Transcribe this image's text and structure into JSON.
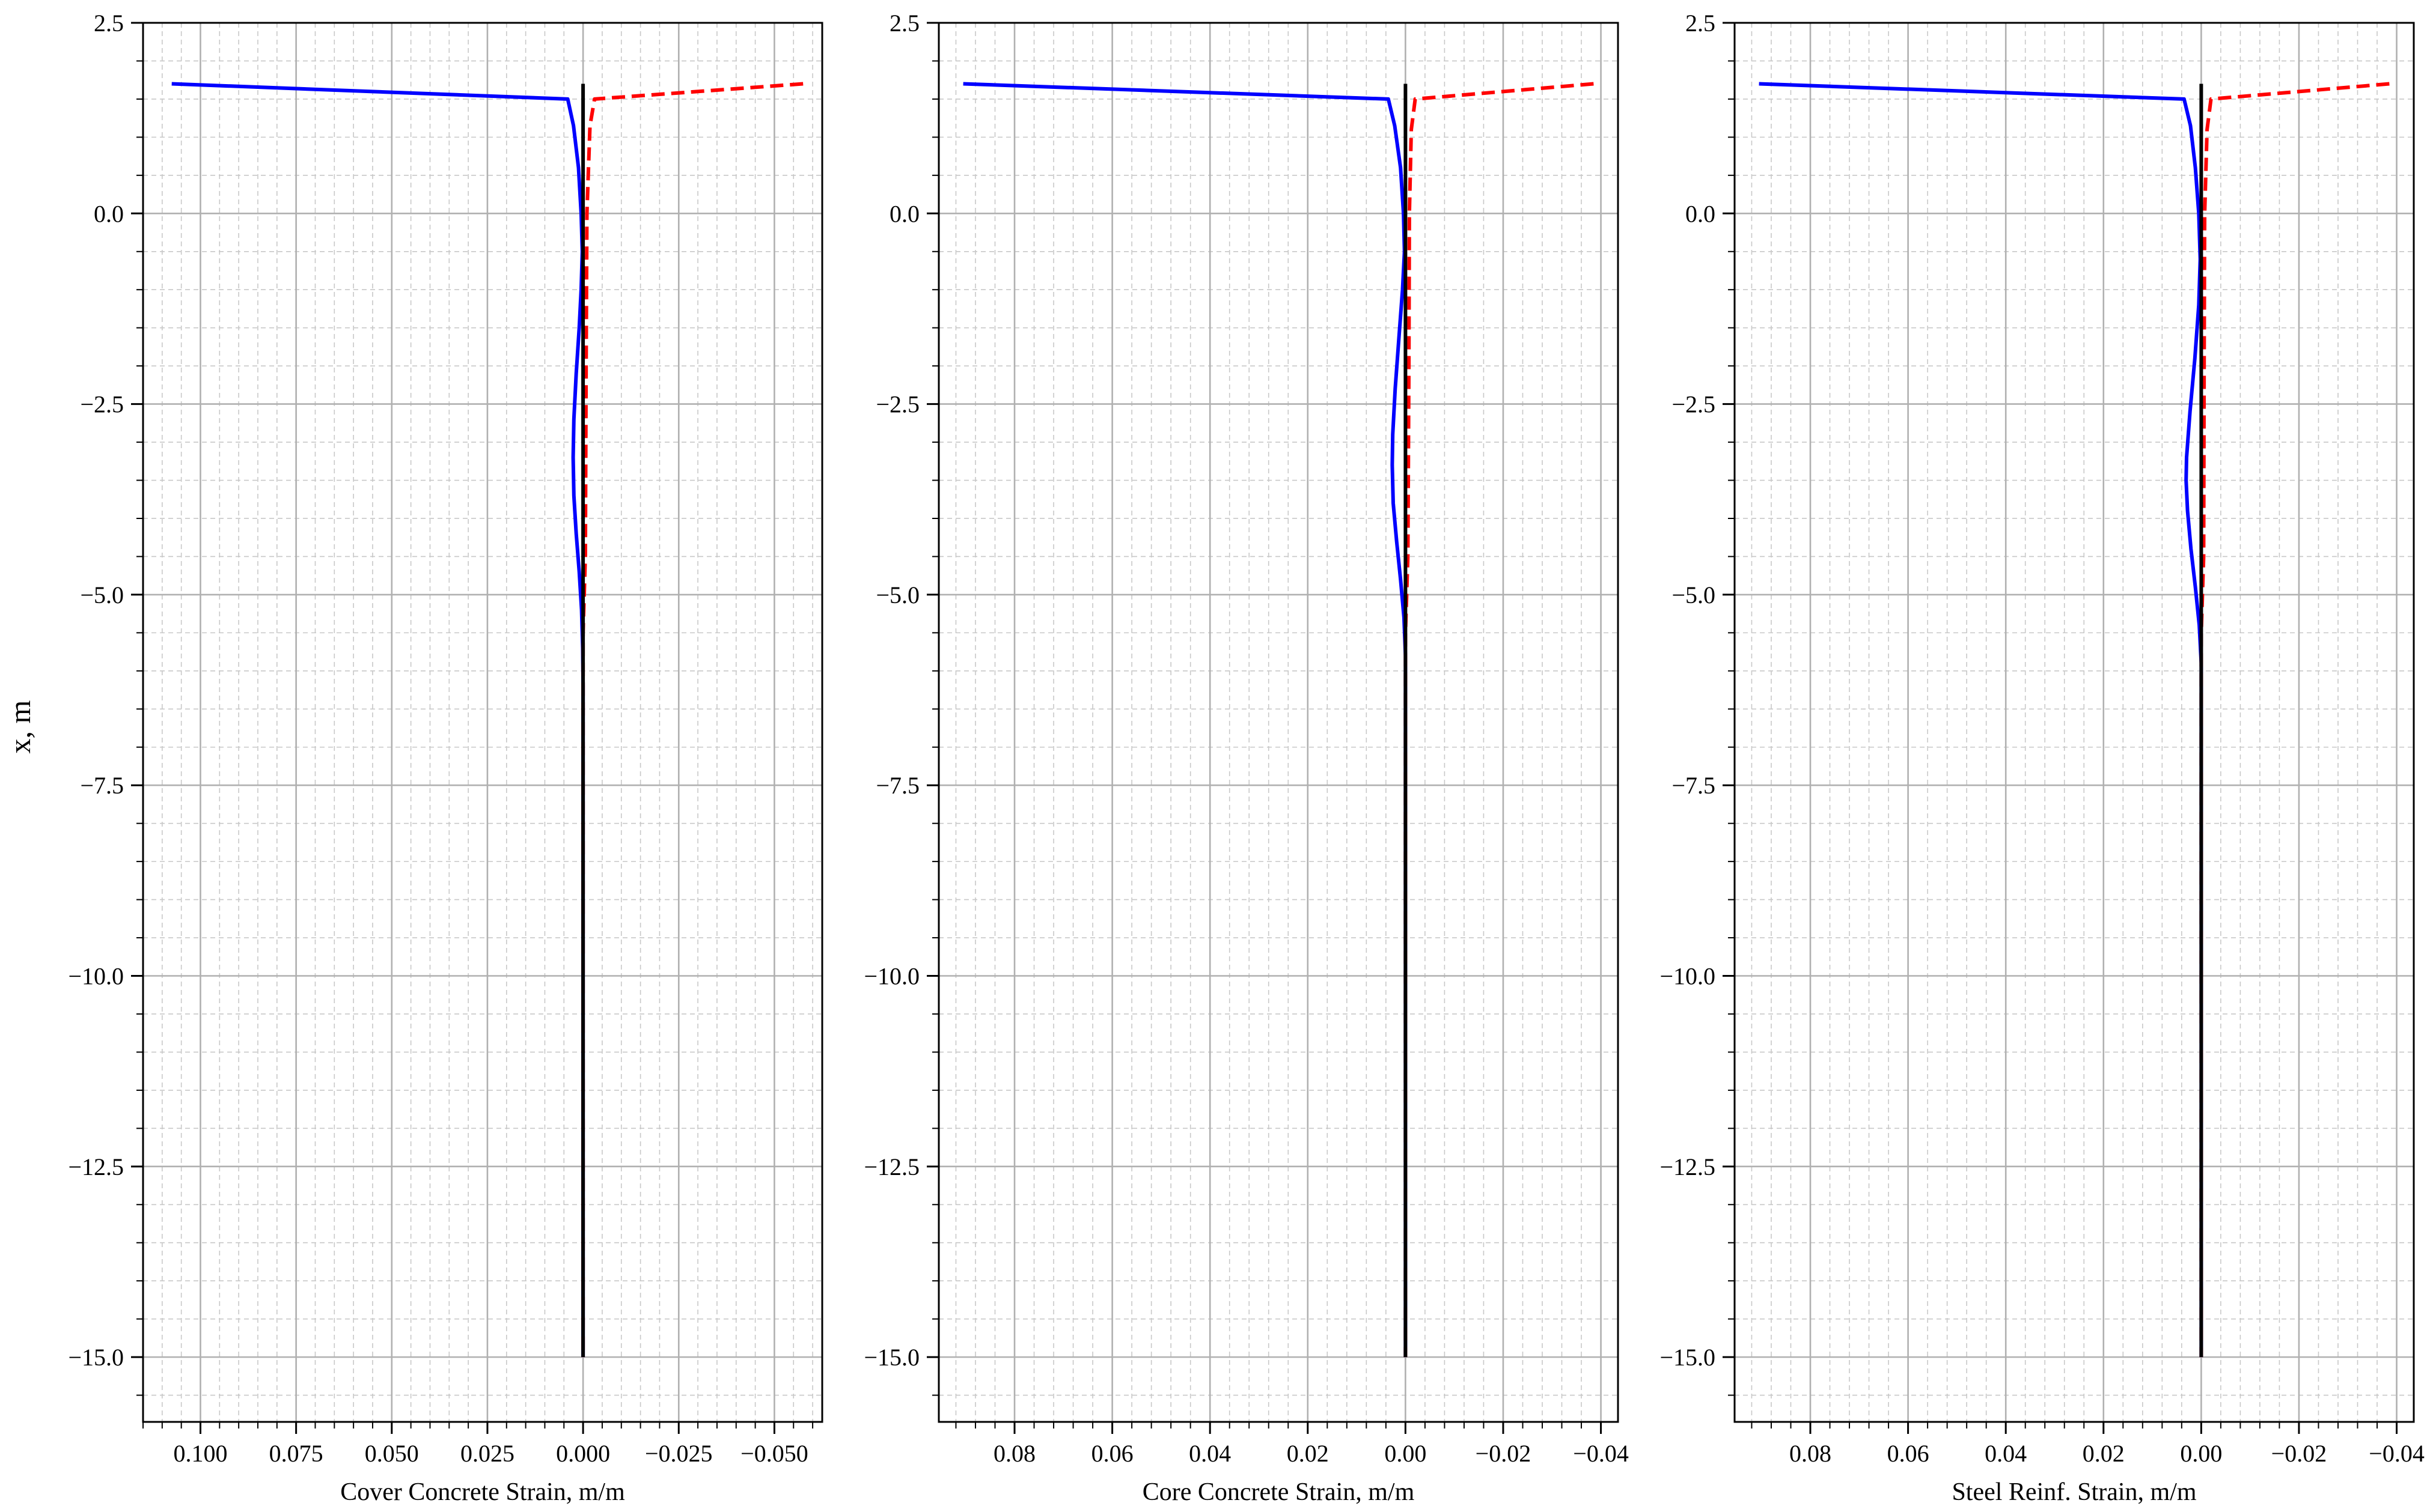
{
  "figure": {
    "ylabel": "x, m"
  },
  "colors": {
    "compression": "#0000ff",
    "tension": "#ff0000",
    "zero_line": "#000000",
    "grid_major": "#b0b0b0",
    "grid_minor": "#c8c8c8"
  },
  "chart_data": [
    {
      "type": "line",
      "title": "",
      "xlabel": "Cover Concrete Strain, m/m",
      "ylabel": "x, m",
      "xlim": [
        0.115,
        -0.0625
      ],
      "x_inverted": true,
      "ylim": [
        -15.85,
        2.5
      ],
      "xticks": [
        0.1,
        0.075,
        0.05,
        0.025,
        0.0,
        -0.025,
        -0.05
      ],
      "xtick_labels": [
        "0.100",
        "0.075",
        "0.050",
        "0.025",
        "0.000",
        "−0.025",
        "−0.050"
      ],
      "yticks": [
        2.5,
        0.0,
        -2.5,
        -5.0,
        -7.5,
        -10.0,
        -12.5,
        -15.0
      ],
      "ytick_labels": [
        "2.5",
        "0.0",
        "−2.5",
        "−5.0",
        "−7.5",
        "−10.0",
        "−12.5",
        "−15.0"
      ],
      "grid": true,
      "series": [
        {
          "style": "solid",
          "color": "#0000ff",
          "points": [
            [
              0.1075,
              1.7
            ],
            [
              0.004,
              1.5
            ],
            [
              0.0025,
              1.15
            ],
            [
              0.0012,
              0.6
            ],
            [
              0.0005,
              0.0
            ],
            [
              0.0002,
              -0.5
            ],
            [
              0.0005,
              -1.0
            ],
            [
              0.001,
              -1.5
            ],
            [
              0.0018,
              -2.1
            ],
            [
              0.0024,
              -2.7
            ],
            [
              0.0026,
              -3.2
            ],
            [
              0.0024,
              -3.7
            ],
            [
              0.0018,
              -4.2
            ],
            [
              0.001,
              -4.7
            ],
            [
              0.0004,
              -5.2
            ],
            [
              0.0001,
              -5.7
            ],
            [
              0.0,
              -6.2
            ],
            [
              0.0,
              -15.0
            ]
          ]
        },
        {
          "style": "dashed",
          "color": "#ff0000",
          "points": [
            [
              -0.0575,
              1.7
            ],
            [
              -0.003,
              1.5
            ],
            [
              -0.0018,
              1.15
            ],
            [
              -0.001,
              0.0
            ],
            [
              -0.0008,
              -2.0
            ],
            [
              -0.0006,
              -4.5
            ],
            [
              0.0,
              -5.5
            ],
            [
              0.0,
              -15.0
            ]
          ]
        },
        {
          "style": "solid",
          "color": "#000000",
          "points": [
            [
              0.0,
              1.7
            ],
            [
              0.0,
              -15.0
            ]
          ]
        }
      ]
    },
    {
      "type": "line",
      "title": "",
      "xlabel": "Core Concrete Strain, m/m",
      "ylabel": "",
      "xlim": [
        0.0955,
        -0.0435
      ],
      "x_inverted": true,
      "ylim": [
        -15.85,
        2.5
      ],
      "xticks": [
        0.08,
        0.06,
        0.04,
        0.02,
        0.0,
        -0.02,
        -0.04
      ],
      "xtick_labels": [
        "0.08",
        "0.06",
        "0.04",
        "0.02",
        "0.00",
        "−0.02",
        "−0.04"
      ],
      "yticks": [
        2.5,
        0.0,
        -2.5,
        -5.0,
        -7.5,
        -10.0,
        -12.5,
        -15.0
      ],
      "ytick_labels": [
        "2.5",
        "0.0",
        "−2.5",
        "−5.0",
        "−7.5",
        "−10.0",
        "−12.5",
        "−15.0"
      ],
      "grid": true,
      "series": [
        {
          "style": "solid",
          "color": "#0000ff",
          "points": [
            [
              0.0905,
              1.7
            ],
            [
              0.0035,
              1.5
            ],
            [
              0.0022,
              1.15
            ],
            [
              0.001,
              0.6
            ],
            [
              0.0004,
              0.0
            ],
            [
              0.0002,
              -0.5
            ],
            [
              0.0006,
              -1.0
            ],
            [
              0.0013,
              -1.6
            ],
            [
              0.0021,
              -2.3
            ],
            [
              0.0026,
              -2.9
            ],
            [
              0.0027,
              -3.3
            ],
            [
              0.0025,
              -3.8
            ],
            [
              0.0018,
              -4.3
            ],
            [
              0.001,
              -4.8
            ],
            [
              0.0003,
              -5.3
            ],
            [
              0.0,
              -5.8
            ],
            [
              0.0,
              -15.0
            ]
          ]
        },
        {
          "style": "dashed",
          "color": "#ff0000",
          "points": [
            [
              -0.0385,
              1.7
            ],
            [
              -0.002,
              1.5
            ],
            [
              -0.0012,
              1.1
            ],
            [
              -0.0008,
              0.0
            ],
            [
              -0.0007,
              -2.0
            ],
            [
              -0.0005,
              -4.5
            ],
            [
              0.0,
              -5.5
            ],
            [
              0.0,
              -15.0
            ]
          ]
        },
        {
          "style": "solid",
          "color": "#000000",
          "points": [
            [
              0.0,
              1.7
            ],
            [
              0.0,
              -15.0
            ]
          ]
        }
      ]
    },
    {
      "type": "line",
      "title": "",
      "xlabel": "Steel Reinf. Strain, m/m",
      "ylabel": "",
      "xlim": [
        0.0955,
        -0.0435
      ],
      "x_inverted": true,
      "ylim": [
        -15.85,
        2.5
      ],
      "xticks": [
        0.08,
        0.06,
        0.04,
        0.02,
        0.0,
        -0.02,
        -0.04
      ],
      "xtick_labels": [
        "0.08",
        "0.06",
        "0.04",
        "0.02",
        "0.00",
        "−0.02",
        "−0.04"
      ],
      "yticks": [
        2.5,
        0.0,
        -2.5,
        -5.0,
        -7.5,
        -10.0,
        -12.5,
        -15.0
      ],
      "ytick_labels": [
        "2.5",
        "0.0",
        "−2.5",
        "−5.0",
        "−7.5",
        "−10.0",
        "−12.5",
        "−15.0"
      ],
      "grid": true,
      "series": [
        {
          "style": "solid",
          "color": "#0000ff",
          "points": [
            [
              0.0905,
              1.7
            ],
            [
              0.0035,
              1.5
            ],
            [
              0.0022,
              1.15
            ],
            [
              0.0012,
              0.6
            ],
            [
              0.0005,
              0.0
            ],
            [
              0.0002,
              -0.6
            ],
            [
              0.0005,
              -1.2
            ],
            [
              0.0013,
              -1.9
            ],
            [
              0.0023,
              -2.6
            ],
            [
              0.003,
              -3.2
            ],
            [
              0.0031,
              -3.5
            ],
            [
              0.0028,
              -3.9
            ],
            [
              0.0021,
              -4.4
            ],
            [
              0.0012,
              -4.9
            ],
            [
              0.0004,
              -5.4
            ],
            [
              0.0,
              -5.9
            ],
            [
              0.0,
              -15.0
            ]
          ]
        },
        {
          "style": "dashed",
          "color": "#ff0000",
          "points": [
            [
              -0.0385,
              1.7
            ],
            [
              -0.002,
              1.5
            ],
            [
              -0.0012,
              1.1
            ],
            [
              -0.0007,
              0.0
            ],
            [
              -0.0006,
              -2.0
            ],
            [
              -0.0005,
              -4.5
            ],
            [
              0.0,
              -5.5
            ],
            [
              0.0,
              -15.0
            ]
          ]
        },
        {
          "style": "solid",
          "color": "#000000",
          "points": [
            [
              0.0,
              1.7
            ],
            [
              0.0,
              -15.0
            ]
          ]
        }
      ]
    }
  ]
}
